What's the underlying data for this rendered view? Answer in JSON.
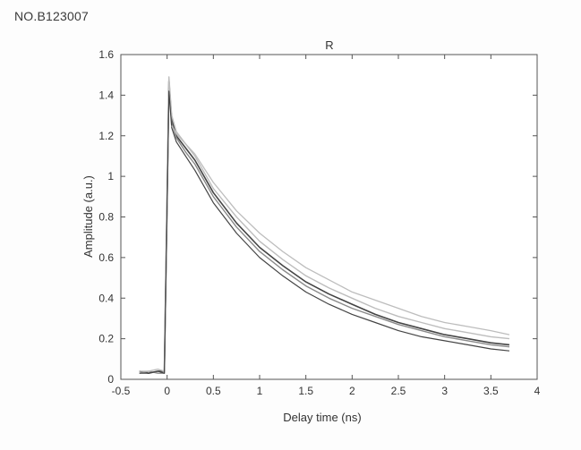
{
  "document": {
    "id_text": "NO.B123007"
  },
  "colors": {
    "axis": "#555555",
    "series_dark": "#444444",
    "series_mid": "#8a8a8a",
    "series_light": "#bdbdbd",
    "series_fit": "#777777"
  },
  "chart_data": {
    "type": "line",
    "title": "R",
    "xlabel": "Delay time (ns)",
    "ylabel": "Amplitude (a.u.)",
    "xlim": [
      -0.5,
      4
    ],
    "ylim": [
      0,
      1.6
    ],
    "xticks": [
      -0.5,
      0,
      0.5,
      1,
      1.5,
      2,
      2.5,
      3,
      3.5,
      4
    ],
    "xtick_labels": [
      "-0.5",
      "0",
      "0.5",
      "1",
      "1.5",
      "2",
      "2.5",
      "3",
      "3.5",
      "4"
    ],
    "yticks": [
      0,
      0.2,
      0.4,
      0.6,
      0.8,
      1,
      1.2,
      1.4,
      1.6
    ],
    "ytick_labels": [
      "0",
      "0.2",
      "0.4",
      "0.6",
      "0.8",
      "1",
      "1.2",
      "1.4",
      "1.6"
    ],
    "grid": false,
    "legend": "none",
    "series": [
      {
        "x": [
          -0.3,
          -0.2,
          -0.1,
          -0.03,
          0.0,
          0.02,
          0.05,
          0.1,
          0.2,
          0.3,
          0.5,
          0.75,
          1.0,
          1.25,
          1.5,
          1.75,
          2.0,
          2.25,
          2.5,
          2.75,
          3.0,
          3.25,
          3.5,
          3.7
        ],
        "y": [
          0.04,
          0.03,
          0.04,
          0.04,
          0.9,
          1.47,
          1.28,
          1.2,
          1.14,
          1.08,
          0.92,
          0.77,
          0.65,
          0.56,
          0.48,
          0.42,
          0.37,
          0.32,
          0.28,
          0.25,
          0.22,
          0.2,
          0.18,
          0.17
        ]
      },
      {
        "x": [
          -0.3,
          -0.2,
          -0.1,
          -0.03,
          0.0,
          0.02,
          0.05,
          0.1,
          0.2,
          0.3,
          0.5,
          0.75,
          1.0,
          1.25,
          1.5,
          1.75,
          2.0,
          2.25,
          2.5,
          2.75,
          3.0,
          3.25,
          3.5,
          3.7
        ],
        "y": [
          0.03,
          0.04,
          0.03,
          0.03,
          0.85,
          1.44,
          1.26,
          1.19,
          1.12,
          1.06,
          0.9,
          0.75,
          0.63,
          0.54,
          0.46,
          0.4,
          0.35,
          0.31,
          0.27,
          0.24,
          0.21,
          0.19,
          0.17,
          0.16
        ]
      },
      {
        "x": [
          -0.3,
          -0.2,
          -0.1,
          -0.03,
          0.0,
          0.02,
          0.05,
          0.1,
          0.2,
          0.3,
          0.5,
          0.75,
          1.0,
          1.25,
          1.5,
          1.75,
          2.0,
          2.25,
          2.5,
          2.75,
          3.0,
          3.25,
          3.5,
          3.7
        ],
        "y": [
          0.04,
          0.04,
          0.05,
          0.04,
          0.92,
          1.49,
          1.3,
          1.22,
          1.16,
          1.1,
          0.94,
          0.8,
          0.68,
          0.59,
          0.51,
          0.45,
          0.4,
          0.35,
          0.31,
          0.28,
          0.25,
          0.23,
          0.21,
          0.2
        ]
      },
      {
        "x": [
          -0.3,
          -0.2,
          -0.1,
          -0.03,
          0.0,
          0.02,
          0.05,
          0.1,
          0.2,
          0.3,
          0.5,
          0.75,
          1.0,
          1.25,
          1.5,
          1.75,
          2.0,
          2.25,
          2.5,
          2.75,
          3.0,
          3.25,
          3.5,
          3.7
        ],
        "y": [
          0.03,
          0.03,
          0.04,
          0.03,
          0.88,
          1.42,
          1.24,
          1.17,
          1.1,
          1.03,
          0.87,
          0.72,
          0.6,
          0.51,
          0.43,
          0.37,
          0.32,
          0.28,
          0.24,
          0.21,
          0.19,
          0.17,
          0.15,
          0.14
        ]
      },
      {
        "x": [
          0.05,
          0.1,
          0.2,
          0.3,
          0.5,
          0.75,
          1.0,
          1.25,
          1.5,
          1.75,
          2.0,
          2.25,
          2.5,
          2.75,
          3.0,
          3.25,
          3.5,
          3.7
        ],
        "y": [
          1.25,
          1.21,
          1.16,
          1.11,
          0.97,
          0.83,
          0.72,
          0.63,
          0.55,
          0.49,
          0.43,
          0.39,
          0.35,
          0.31,
          0.28,
          0.26,
          0.24,
          0.22
        ]
      }
    ]
  }
}
